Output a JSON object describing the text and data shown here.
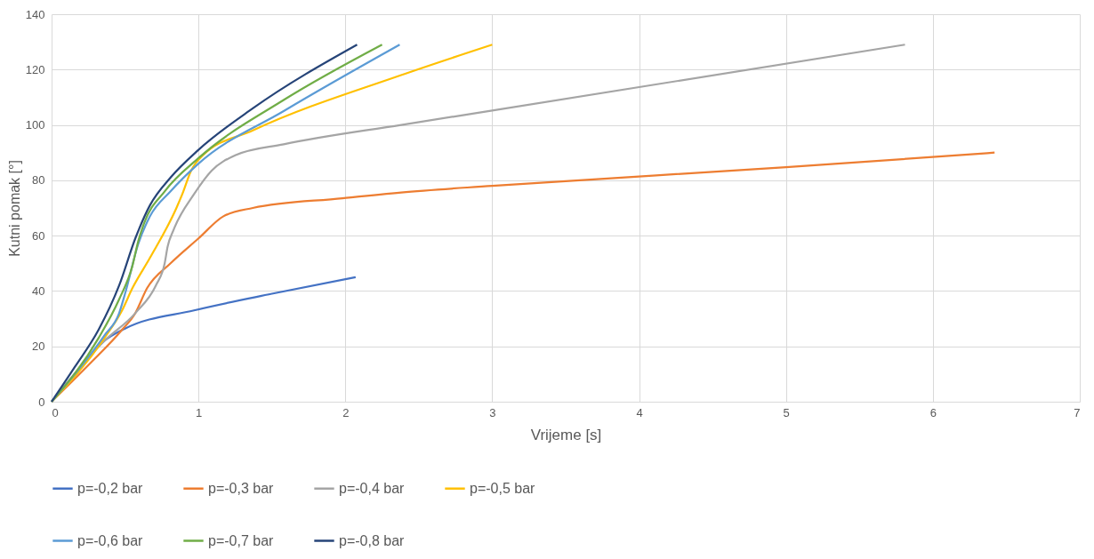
{
  "chart_data": {
    "type": "line",
    "xlabel": "Vrijeme [s]",
    "ylabel": "Kutni pomak [°]",
    "xlim": [
      0,
      7
    ],
    "xticks": [
      0,
      1,
      2,
      3,
      4,
      5,
      6,
      7
    ],
    "ylim": [
      0,
      140
    ],
    "yticks": [
      0,
      20,
      40,
      60,
      80,
      100,
      120,
      140
    ],
    "grid": true,
    "legend": "bottom",
    "line_style": "solid",
    "series": [
      {
        "name": "p=-0,2 bar",
        "color": "#4472c4",
        "x": [
          0,
          0.2,
          0.36,
          0.5,
          0.97,
          1.5,
          2.07
        ],
        "values": [
          0,
          12.7,
          22,
          26.4,
          33,
          39,
          45
        ]
      },
      {
        "name": "p=-0,3 bar",
        "color": "#ed7d31",
        "x": [
          0,
          0.26,
          0.48,
          0.57,
          0.65,
          0.81,
          1.0,
          1.17,
          1.37,
          1.98,
          2.38,
          3,
          5,
          6.42
        ],
        "values": [
          0,
          13.7,
          26,
          32,
          41,
          50,
          59,
          67,
          70,
          73.5,
          75.6,
          78,
          84.7,
          90
        ]
      },
      {
        "name": "p=-0,4 bar",
        "color": "#a5a5a5",
        "x": [
          0,
          0.36,
          0.57,
          0.71,
          0.77,
          0.79,
          0.83,
          0.97,
          1.09,
          1.25,
          1.58,
          2.38,
          3,
          5.81
        ],
        "values": [
          0,
          22,
          32,
          42,
          50,
          56,
          62,
          75,
          83.5,
          89,
          93,
          100,
          105.2,
          129
        ]
      },
      {
        "name": "p=-0,5 bar",
        "color": "#ffc000",
        "x": [
          0,
          0.36,
          0.48,
          0.55,
          0.67,
          0.85,
          0.89,
          0.95,
          1.03,
          1.37,
          2.38,
          3.0
        ],
        "values": [
          0,
          23,
          33,
          41,
          52,
          70,
          75,
          83.5,
          89,
          98,
          118,
          129
        ]
      },
      {
        "name": "p=-0,6 bar",
        "color": "#5b9bd5",
        "x": [
          0,
          0.36,
          0.46,
          0.5,
          0.59,
          0.67,
          0.81,
          1.0,
          1.58,
          2.37
        ],
        "values": [
          0,
          24,
          32,
          39,
          57,
          67,
          76,
          86,
          105,
          129
        ]
      },
      {
        "name": "p=-0,7 bar",
        "color": "#70ad47",
        "x": [
          0,
          0.32,
          0.46,
          0.55,
          0.59,
          0.63,
          0.77,
          1.0,
          1.58,
          2.25
        ],
        "values": [
          0,
          23,
          37,
          49,
          58,
          64.5,
          76,
          88,
          109,
          129
        ]
      },
      {
        "name": "p=-0,8 bar",
        "color": "#264478",
        "x": [
          0,
          0.16,
          0.32,
          0.46,
          0.57,
          0.67,
          0.81,
          1.0,
          1.37,
          2.08
        ],
        "values": [
          0,
          12.7,
          26,
          42,
          59,
          71,
          81,
          91,
          106,
          129
        ]
      }
    ]
  }
}
